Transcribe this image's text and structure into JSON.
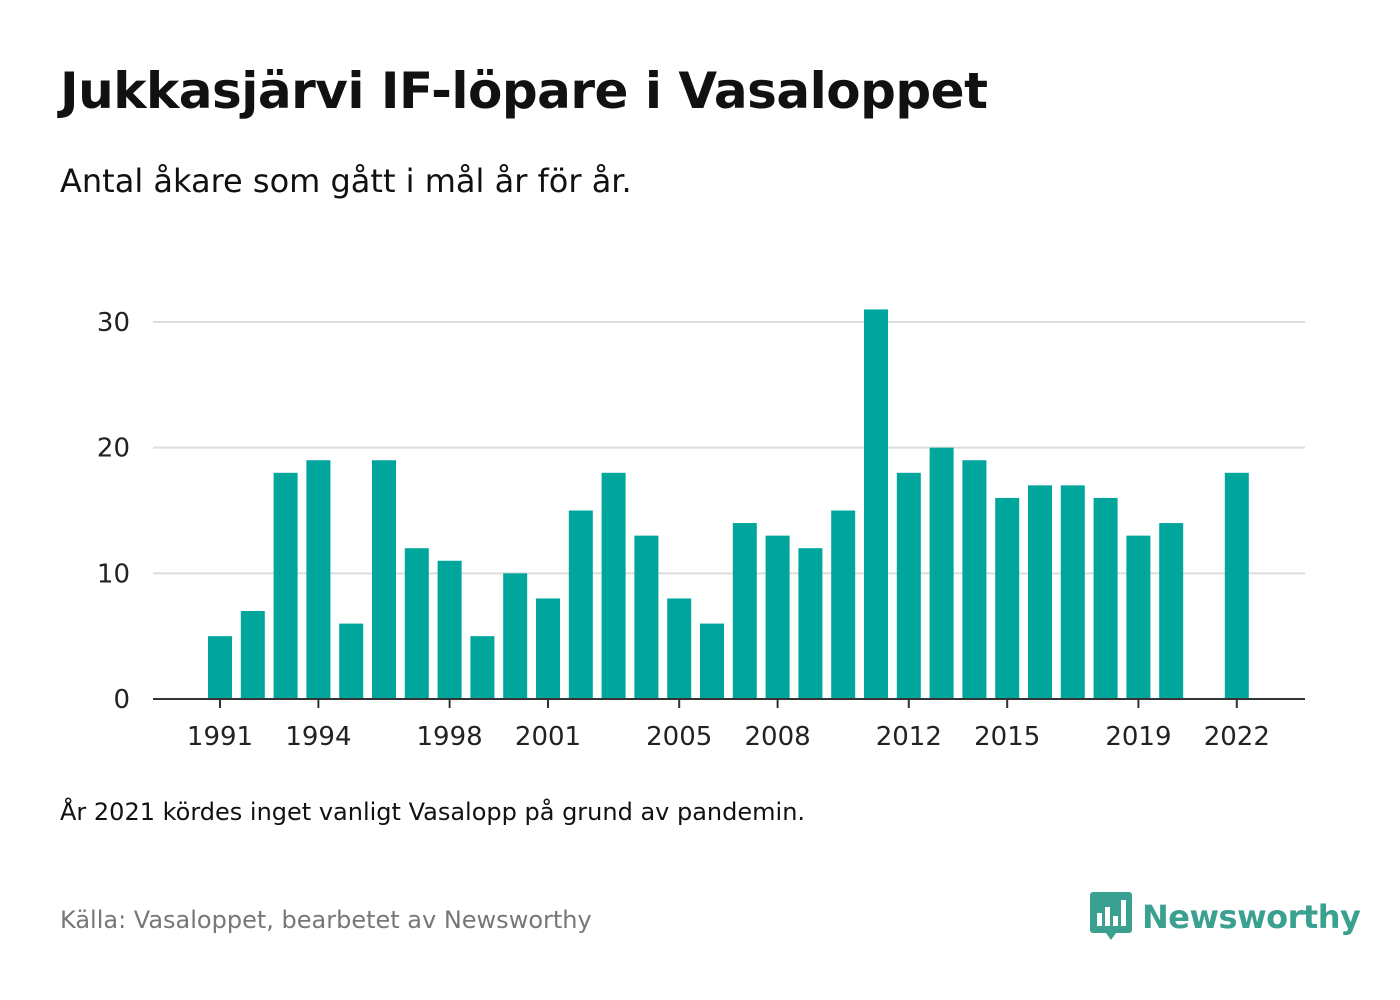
{
  "title": "Jukkasjärvi IF-löpare i Vasaloppet",
  "subtitle": "Antal åkare som gått i mål år för år.",
  "note": "År 2021 kördes inget vanligt Vasalopp på grund av pandemin.",
  "source": "Källa: Vasaloppet, bearbetet av Newsworthy",
  "brand": {
    "name": "Newsworthy",
    "icon": "newsworthy-logo-icon",
    "color": "#3aa08f"
  },
  "colors": {
    "bar": "#00a69c",
    "grid": "#dddddd",
    "axis": "#333333"
  },
  "chart_data": {
    "type": "bar",
    "x": [
      1991,
      1992,
      1993,
      1994,
      1995,
      1996,
      1997,
      1998,
      1999,
      2000,
      2001,
      2002,
      2003,
      2004,
      2005,
      2006,
      2007,
      2008,
      2009,
      2010,
      2011,
      2012,
      2013,
      2014,
      2015,
      2016,
      2017,
      2018,
      2019,
      2020,
      2021,
      2022
    ],
    "values": [
      5,
      7,
      18,
      19,
      6,
      19,
      12,
      11,
      5,
      10,
      8,
      15,
      18,
      13,
      8,
      6,
      14,
      13,
      12,
      15,
      31,
      18,
      20,
      19,
      16,
      17,
      17,
      16,
      13,
      14,
      null,
      18
    ],
    "xticks": [
      "1991",
      "1994",
      "1998",
      "2001",
      "2005",
      "2008",
      "2012",
      "2015",
      "2019",
      "2022"
    ],
    "yticks": [
      "0",
      "10",
      "20",
      "30"
    ],
    "ylim": [
      0,
      32
    ],
    "xlabel": "",
    "ylabel": "",
    "grid": true
  }
}
